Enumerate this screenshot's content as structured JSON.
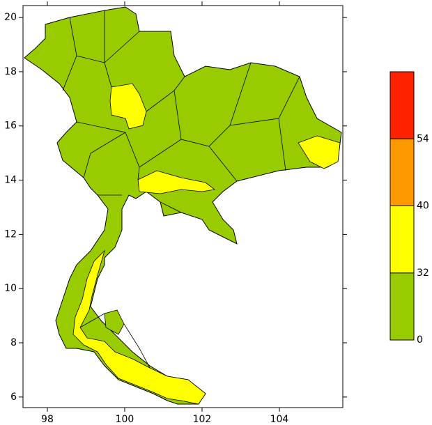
{
  "map": {
    "xlim": [
      97.37,
      105.64
    ],
    "ylim": [
      5.61,
      20.44
    ],
    "xticks": [
      98,
      100,
      102,
      104
    ],
    "yticks": [
      6,
      8,
      10,
      12,
      14,
      16,
      18,
      20
    ],
    "colorbar": {
      "levels": [
        0,
        32,
        40,
        54
      ],
      "colors": [
        "#99cc00",
        "#ffff00",
        "#ff9900",
        "#ff2200"
      ]
    }
  }
}
